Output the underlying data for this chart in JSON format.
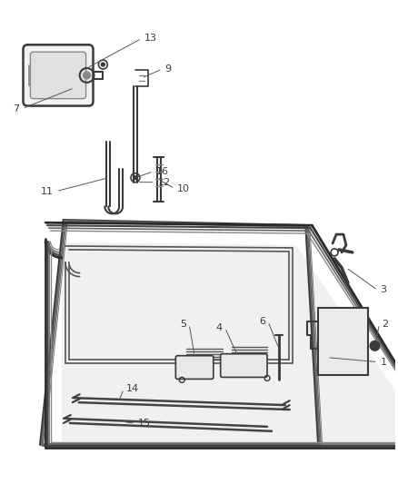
{
  "bg_color": "#ffffff",
  "line_color": "#3a3a3a",
  "light_line": "#888888",
  "fig_width": 4.38,
  "fig_height": 5.33,
  "dpi": 100
}
